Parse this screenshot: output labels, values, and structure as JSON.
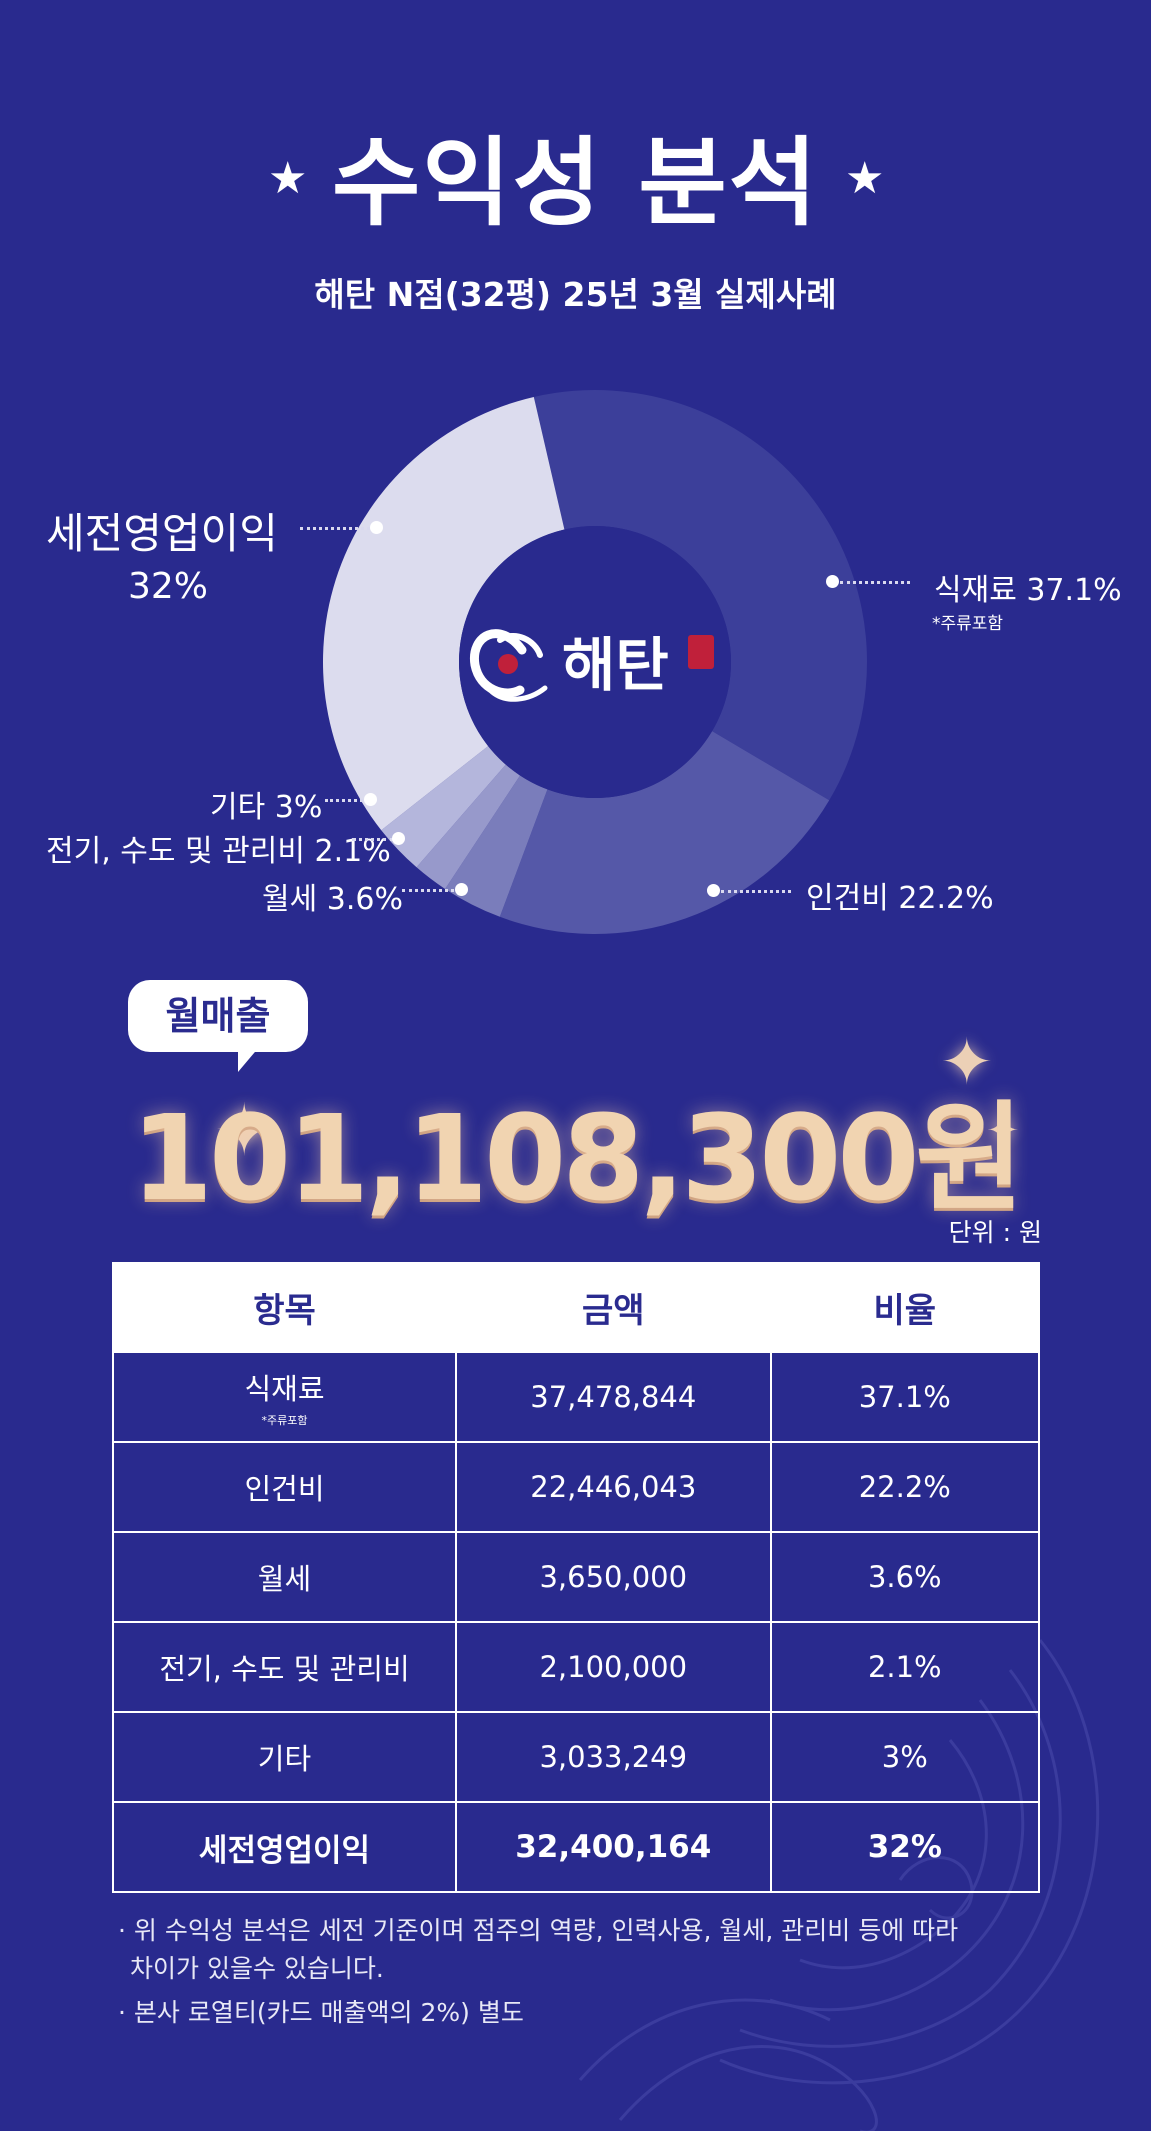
{
  "header": {
    "title": "수익성 분석",
    "title_star": "★",
    "subtitle": "해탄 N점(32평) 25년 3월 실제사례"
  },
  "logo": {
    "brand_text": "해탄",
    "seal_text": "海灘"
  },
  "chart_data": {
    "type": "pie",
    "variant": "donut",
    "slices": [
      {
        "label": "식재료 37.1%",
        "name": "식재료",
        "value": 37.1,
        "note": "*주류포함",
        "color": "#3c3f9a"
      },
      {
        "label": "인건비 22.2%",
        "name": "인건비",
        "value": 22.2,
        "color": "#5558a8"
      },
      {
        "label": "월세 3.6%",
        "name": "월세",
        "value": 3.6,
        "color": "#7a7dbb"
      },
      {
        "label": "전기, 수도 및 관리비 2.1%",
        "name": "전기, 수도 및 관리비",
        "value": 2.1,
        "color": "#9799cb"
      },
      {
        "label": "기타 3%",
        "name": "기타",
        "value": 3,
        "color": "#b4b6dc"
      },
      {
        "label": "세전영업이익",
        "label_value": "32%",
        "name": "세전영업이익",
        "value": 32,
        "color": "#dcdcee"
      }
    ]
  },
  "revenue": {
    "badge_label": "월매출",
    "amount": "101,108,300원",
    "unit_label": "단위 : 원",
    "sparkle": "✦"
  },
  "table": {
    "headers": [
      "항목",
      "금액",
      "비율"
    ],
    "rows": [
      {
        "item": "식재료",
        "note": "*주류포함",
        "amount": "37,478,844",
        "ratio": "37.1%"
      },
      {
        "item": "인건비",
        "amount": "22,446,043",
        "ratio": "22.2%"
      },
      {
        "item": "월세",
        "amount": "3,650,000",
        "ratio": "3.6%"
      },
      {
        "item": "전기, 수도 및 관리비",
        "amount": "2,100,000",
        "ratio": "2.1%"
      },
      {
        "item": "기타",
        "amount": "3,033,249",
        "ratio": "3%"
      }
    ],
    "total": {
      "item": "세전영업이익",
      "amount": "32,400,164",
      "ratio": "32%"
    }
  },
  "footnotes": [
    "· 위 수익성 분석은 세전 기준이며 점주의 역량, 인력사용, 월세, 관리비 등에 따라",
    "차이가 있을수 있습니다.",
    "· 본사 로열티(카드 매출액의 2%) 별도"
  ]
}
